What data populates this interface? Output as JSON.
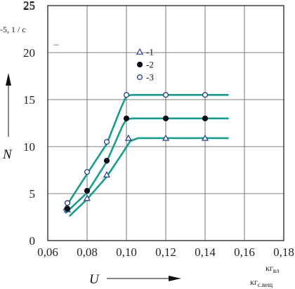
{
  "chart_data": {
    "type": "scatter",
    "xlabel": "U",
    "ylabel": "N",
    "x_unit": {
      "top": "кг",
      "top_sub": "вл",
      "bottom": "кг",
      "bottom_sub": "с.вещ"
    },
    "y_unit": "-5, 1 / с",
    "xlim": [
      0.06,
      0.18
    ],
    "ylim": [
      0,
      25
    ],
    "x_ticks": [
      "0,06",
      "0,08",
      "0,10",
      "0,12",
      "0,14",
      "0,16",
      "0,18"
    ],
    "y_ticks": [
      "0",
      "5",
      "10",
      "15",
      "20",
      "25",
      "25"
    ],
    "grid": true,
    "legend_position": "top-center",
    "line_color": "#1a9c8c",
    "series": [
      {
        "name": "-1",
        "marker": "triangle-open",
        "points": [
          [
            0.07,
            3.3
          ],
          [
            0.08,
            4.5
          ],
          [
            0.09,
            7.0
          ],
          [
            0.101,
            10.9
          ],
          [
            0.12,
            10.9
          ],
          [
            0.14,
            10.9
          ]
        ],
        "curve": [
          [
            0.071,
            2.6
          ],
          [
            0.08,
            4.4
          ],
          [
            0.09,
            6.8
          ],
          [
            0.098,
            9.3
          ],
          [
            0.102,
            10.6
          ],
          [
            0.106,
            10.9
          ],
          [
            0.152,
            10.9
          ]
        ]
      },
      {
        "name": "-2",
        "marker": "filled-circle",
        "points": [
          [
            0.07,
            3.4
          ],
          [
            0.08,
            5.3
          ],
          [
            0.09,
            8.5
          ],
          [
            0.1,
            13.0
          ],
          [
            0.12,
            13.0
          ],
          [
            0.14,
            13.0
          ]
        ],
        "curve": [
          [
            0.069,
            2.9
          ],
          [
            0.08,
            5.1
          ],
          [
            0.09,
            8.4
          ],
          [
            0.098,
            12.2
          ],
          [
            0.1,
            12.9
          ],
          [
            0.103,
            13.0
          ],
          [
            0.152,
            13.0
          ]
        ]
      },
      {
        "name": "-3",
        "marker": "circle-open",
        "points": [
          [
            0.07,
            4.0
          ],
          [
            0.08,
            7.3
          ],
          [
            0.09,
            10.5
          ],
          [
            0.1,
            15.5
          ],
          [
            0.12,
            15.5
          ],
          [
            0.14,
            15.5
          ]
        ],
        "curve": [
          [
            0.068,
            3.2
          ],
          [
            0.08,
            7.1
          ],
          [
            0.09,
            10.3
          ],
          [
            0.097,
            14.0
          ],
          [
            0.1,
            15.4
          ],
          [
            0.103,
            15.5
          ],
          [
            0.152,
            15.5
          ]
        ]
      }
    ]
  }
}
